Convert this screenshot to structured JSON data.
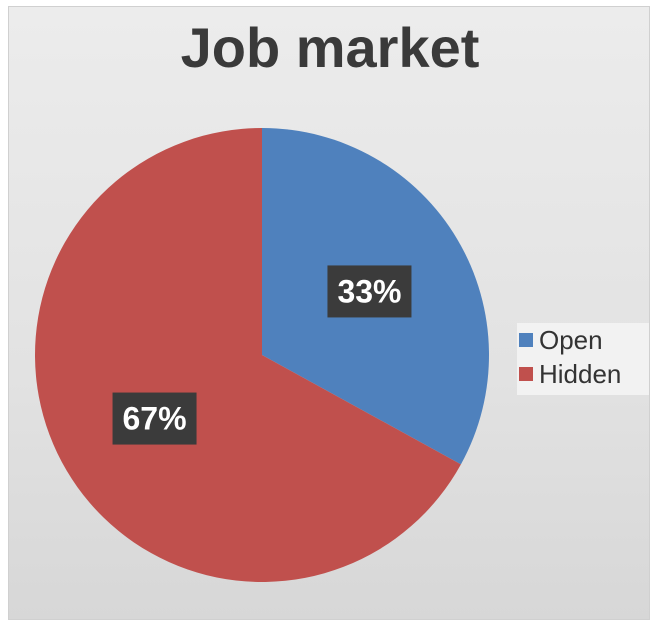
{
  "chart_data": {
    "type": "pie",
    "title": "Job market",
    "categories": [
      "Open",
      "Hidden"
    ],
    "values": [
      33,
      67
    ],
    "data_labels": [
      "33%",
      "67%"
    ],
    "colors": [
      "#4f81bd",
      "#c0504d"
    ],
    "legend": "right",
    "label_style": {
      "background": "#3b3b3b",
      "color": "#ffffff"
    }
  }
}
